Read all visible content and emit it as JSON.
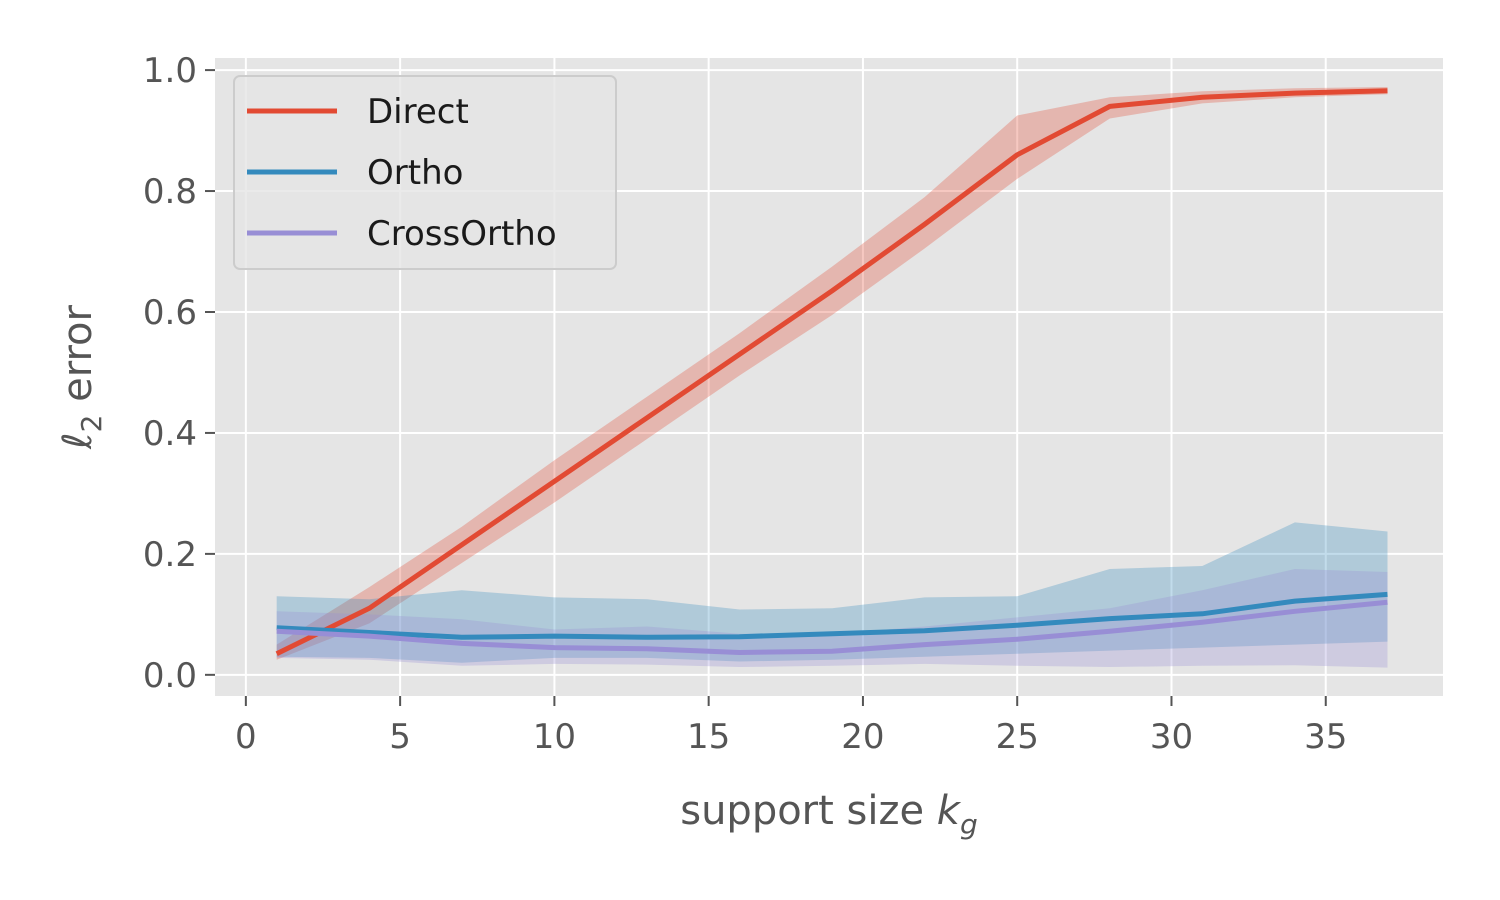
{
  "chart_data": {
    "type": "line",
    "xlabel": {
      "main": "support size ",
      "var": "k",
      "sub": "g"
    },
    "ylabel": {
      "var": "ℓ",
      "sub": "2",
      "rest": " error"
    },
    "xlim": [
      -1,
      38.8
    ],
    "ylim": [
      -0.035,
      1.02
    ],
    "xticks": [
      0,
      5,
      10,
      15,
      20,
      25,
      30,
      35
    ],
    "xtick_labels": [
      "0",
      "5",
      "10",
      "15",
      "20",
      "25",
      "30",
      "35"
    ],
    "yticks": [
      0.0,
      0.2,
      0.4,
      0.6,
      0.8,
      1.0
    ],
    "ytick_labels": [
      "0.0",
      "0.2",
      "0.4",
      "0.6",
      "0.8",
      "1.0"
    ],
    "grid": true,
    "legend_position": "top-left",
    "background": "#e5e5e5",
    "x": [
      1,
      4,
      7,
      10,
      13,
      16,
      19,
      22,
      25,
      28,
      31,
      34,
      37
    ],
    "series": [
      {
        "name": "Direct",
        "color": "#e24a33",
        "values": [
          0.035,
          0.11,
          0.215,
          0.32,
          0.425,
          0.53,
          0.635,
          0.745,
          0.86,
          0.94,
          0.955,
          0.962,
          0.966
        ],
        "lower": [
          0.025,
          0.085,
          0.185,
          0.285,
          0.39,
          0.495,
          0.595,
          0.705,
          0.82,
          0.92,
          0.945,
          0.955,
          0.96
        ],
        "upper": [
          0.05,
          0.145,
          0.245,
          0.355,
          0.46,
          0.565,
          0.675,
          0.79,
          0.925,
          0.955,
          0.965,
          0.97,
          0.972
        ]
      },
      {
        "name": "Ortho",
        "color": "#348abd",
        "values": [
          0.078,
          0.07,
          0.062,
          0.064,
          0.062,
          0.063,
          0.068,
          0.073,
          0.082,
          0.093,
          0.101,
          0.122,
          0.133
        ],
        "lower": [
          0.03,
          0.028,
          0.02,
          0.028,
          0.028,
          0.022,
          0.025,
          0.03,
          0.035,
          0.04,
          0.045,
          0.05,
          0.055
        ],
        "upper": [
          0.13,
          0.125,
          0.14,
          0.128,
          0.125,
          0.108,
          0.11,
          0.128,
          0.13,
          0.175,
          0.18,
          0.252,
          0.237
        ]
      },
      {
        "name": "CrossOrtho",
        "color": "#988ed5",
        "values": [
          0.072,
          0.064,
          0.052,
          0.045,
          0.043,
          0.037,
          0.039,
          0.05,
          0.059,
          0.072,
          0.087,
          0.105,
          0.12
        ],
        "lower": [
          0.028,
          0.025,
          0.015,
          0.018,
          0.017,
          0.013,
          0.015,
          0.018,
          0.015,
          0.013,
          0.015,
          0.016,
          0.012
        ],
        "upper": [
          0.105,
          0.1,
          0.092,
          0.075,
          0.08,
          0.068,
          0.068,
          0.08,
          0.095,
          0.11,
          0.14,
          0.175,
          0.17
        ]
      }
    ]
  }
}
